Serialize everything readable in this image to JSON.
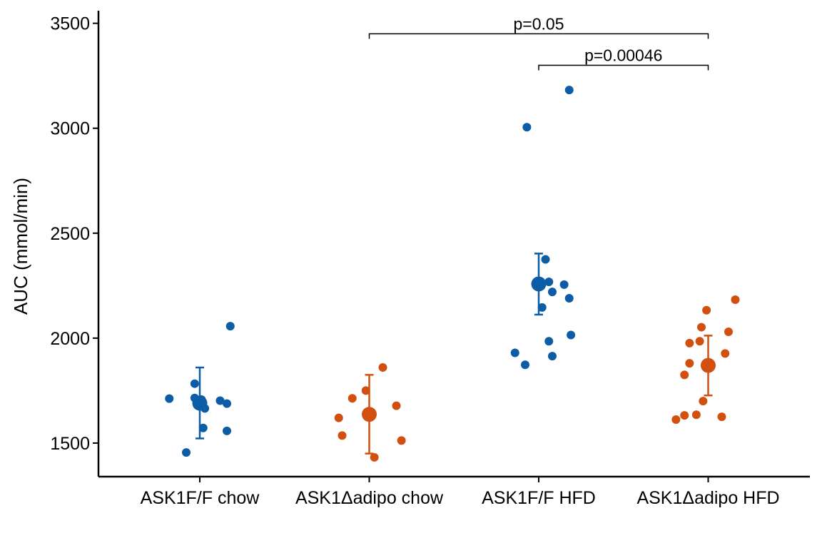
{
  "chart_data": {
    "type": "scatter",
    "title": "",
    "xlabel": "",
    "ylabel": "AUC (mmol/min)",
    "ylim": [
      1340,
      3560
    ],
    "yticks": [
      1500,
      2000,
      2500,
      3000,
      3500
    ],
    "categories": [
      "ASK1F/F chow",
      "ASK1Δadipo chow",
      "ASK1F/F HFD",
      "ASK1Δadipo HFD"
    ],
    "grid": false,
    "legend": "none",
    "groups": [
      {
        "category": "ASK1F/F chow",
        "color": "#0C5DA5",
        "mean": 1690,
        "error": [
          1522,
          1860
        ],
        "points": [
          {
            "dx": -0.18,
            "y": 1712
          },
          {
            "dx": -0.03,
            "y": 1783
          },
          {
            "dx": -0.03,
            "y": 1715
          },
          {
            "dx": 0.01,
            "y": 1707
          },
          {
            "dx": 0.03,
            "y": 1665
          },
          {
            "dx": 0.02,
            "y": 1572
          },
          {
            "dx": 0.12,
            "y": 1702
          },
          {
            "dx": 0.16,
            "y": 1688
          },
          {
            "dx": 0.16,
            "y": 1558
          },
          {
            "dx": 0.18,
            "y": 2057
          },
          {
            "dx": -0.08,
            "y": 1455
          }
        ]
      },
      {
        "category": "ASK1Δadipo chow",
        "color": "#D1500F",
        "mean": 1637,
        "error": [
          1450,
          1825
        ],
        "points": [
          {
            "dx": -0.18,
            "y": 1620
          },
          {
            "dx": -0.16,
            "y": 1536
          },
          {
            "dx": -0.1,
            "y": 1713
          },
          {
            "dx": -0.02,
            "y": 1750
          },
          {
            "dx": 0.03,
            "y": 1432
          },
          {
            "dx": 0.08,
            "y": 1860
          },
          {
            "dx": 0.16,
            "y": 1678
          },
          {
            "dx": 0.19,
            "y": 1512
          }
        ]
      },
      {
        "category": "ASK1F/F HFD",
        "color": "#0C5DA5",
        "mean": 2258,
        "error": [
          2112,
          2403
        ],
        "points": [
          {
            "dx": -0.14,
            "y": 1930
          },
          {
            "dx": -0.08,
            "y": 1873
          },
          {
            "dx": -0.07,
            "y": 3005
          },
          {
            "dx": 0.02,
            "y": 2146
          },
          {
            "dx": 0.04,
            "y": 2375
          },
          {
            "dx": 0.06,
            "y": 2268
          },
          {
            "dx": 0.06,
            "y": 1985
          },
          {
            "dx": 0.08,
            "y": 2220
          },
          {
            "dx": 0.08,
            "y": 1914
          },
          {
            "dx": 0.15,
            "y": 2255
          },
          {
            "dx": 0.18,
            "y": 2190
          },
          {
            "dx": 0.18,
            "y": 3182
          },
          {
            "dx": 0.19,
            "y": 2015
          }
        ]
      },
      {
        "category": "ASK1Δadipo HFD",
        "color": "#D1500F",
        "mean": 1870,
        "error": [
          1727,
          2012
        ],
        "points": [
          {
            "dx": -0.19,
            "y": 1612
          },
          {
            "dx": -0.14,
            "y": 1632
          },
          {
            "dx": -0.14,
            "y": 1825
          },
          {
            "dx": -0.11,
            "y": 1880
          },
          {
            "dx": -0.11,
            "y": 1976
          },
          {
            "dx": -0.07,
            "y": 1635
          },
          {
            "dx": -0.05,
            "y": 1985
          },
          {
            "dx": -0.04,
            "y": 2052
          },
          {
            "dx": -0.03,
            "y": 1700
          },
          {
            "dx": -0.01,
            "y": 2133
          },
          {
            "dx": 0.08,
            "y": 1625
          },
          {
            "dx": 0.1,
            "y": 1927
          },
          {
            "dx": 0.12,
            "y": 2030
          },
          {
            "dx": 0.16,
            "y": 2183
          }
        ]
      }
    ],
    "annotations": [
      {
        "from": 1,
        "to": 3,
        "y": 3450,
        "label": "p=0.05"
      },
      {
        "from": 2,
        "to": 3,
        "y": 3300,
        "label": "p=0.00046"
      }
    ]
  }
}
